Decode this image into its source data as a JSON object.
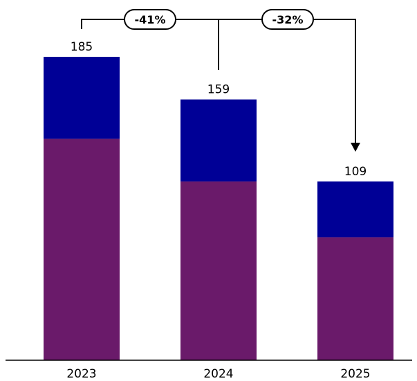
{
  "chart_data": {
    "type": "bar",
    "stacked": true,
    "categories": [
      "2023",
      "2024",
      "2025"
    ],
    "series": [
      {
        "values": [
          135,
          109,
          75
        ],
        "color": "#6a1a6a"
      },
      {
        "values": [
          50,
          50,
          34
        ],
        "color": "#000096"
      }
    ],
    "totals": [
      "185",
      "159",
      "109"
    ],
    "ylim": [
      0,
      200
    ],
    "grid": false,
    "legend": "none",
    "annotations": [
      {
        "label": "-41%",
        "from": "2023",
        "to": "2025"
      },
      {
        "label": "-32%",
        "from": "2024",
        "to": "2025"
      }
    ]
  }
}
